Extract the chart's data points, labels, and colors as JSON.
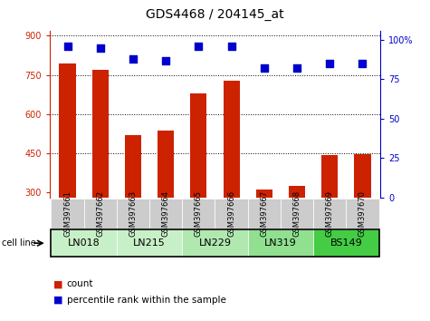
{
  "title": "GDS4468 / 204145_at",
  "samples": [
    "GSM397661",
    "GSM397662",
    "GSM397663",
    "GSM397664",
    "GSM397665",
    "GSM397666",
    "GSM397667",
    "GSM397668",
    "GSM397669",
    "GSM397670"
  ],
  "counts": [
    793,
    768,
    518,
    538,
    678,
    728,
    310,
    325,
    443,
    446
  ],
  "percentiles": [
    96,
    95,
    88,
    87,
    96,
    96,
    82,
    82,
    85,
    85
  ],
  "cell_lines": [
    {
      "name": "LN018",
      "span": [
        0,
        2
      ],
      "color": "#c8f0c8"
    },
    {
      "name": "LN215",
      "span": [
        2,
        4
      ],
      "color": "#c8f0c8"
    },
    {
      "name": "LN229",
      "span": [
        4,
        6
      ],
      "color": "#b0e8b0"
    },
    {
      "name": "LN319",
      "span": [
        6,
        8
      ],
      "color": "#90e090"
    },
    {
      "name": "BS149",
      "span": [
        8,
        10
      ],
      "color": "#44cc44"
    }
  ],
  "ylim_left": [
    280,
    920
  ],
  "ylim_right": [
    0,
    106
  ],
  "yticks_left": [
    300,
    450,
    600,
    750,
    900
  ],
  "yticks_right": [
    0,
    25,
    50,
    75,
    100
  ],
  "bar_color": "#cc2200",
  "dot_color": "#0000cc",
  "bar_width": 0.5,
  "title_fontsize": 10,
  "tick_label_fontsize": 7,
  "cell_line_fontsize": 8,
  "legend_fontsize": 7.5,
  "left_tick_color": "#cc2200",
  "right_tick_color": "#0000cc",
  "sample_bg_color": "#cccccc",
  "cell_line_border_color": "#000000"
}
